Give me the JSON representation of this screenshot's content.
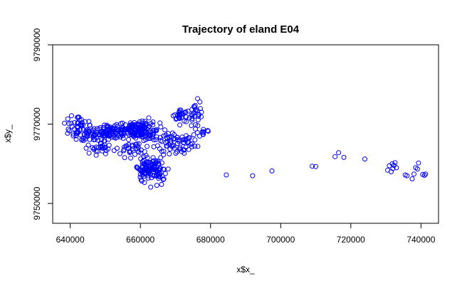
{
  "chart_data": {
    "type": "scatter",
    "title": "Trajectory of eland E04",
    "xlabel": "x$x_",
    "ylabel": "x$y_",
    "xlim": [
      635000,
      745000
    ],
    "ylim": [
      9745000,
      9790000
    ],
    "x_ticks": [
      640000,
      660000,
      680000,
      700000,
      720000,
      740000
    ],
    "y_ticks": [
      9750000,
      9770000,
      9790000
    ],
    "x_tick_labels": [
      "640000",
      "660000",
      "680000",
      "700000",
      "720000",
      "740000"
    ],
    "y_tick_labels": [
      "9750000",
      "9770000",
      "9790000"
    ],
    "marker": "open-circle",
    "point_color": "#0000ff",
    "grid": false,
    "legend": "none",
    "clusters": [
      {
        "cx": 642000,
        "cy": 9769500,
        "sx": 1800,
        "sy": 1600,
        "n": 40
      },
      {
        "cx": 646000,
        "cy": 9767500,
        "sx": 2200,
        "sy": 1200,
        "n": 45
      },
      {
        "cx": 652000,
        "cy": 9768200,
        "sx": 2500,
        "sy": 900,
        "n": 70
      },
      {
        "cx": 649000,
        "cy": 9764000,
        "sx": 2000,
        "sy": 1300,
        "n": 30
      },
      {
        "cx": 658000,
        "cy": 9768800,
        "sx": 2500,
        "sy": 1000,
        "n": 70
      },
      {
        "cx": 661000,
        "cy": 9768500,
        "sx": 2000,
        "sy": 1500,
        "n": 80
      },
      {
        "cx": 657000,
        "cy": 9763500,
        "sx": 2500,
        "sy": 1000,
        "n": 30
      },
      {
        "cx": 663000,
        "cy": 9758500,
        "sx": 2100,
        "sy": 1500,
        "n": 120
      },
      {
        "cx": 667500,
        "cy": 9765000,
        "sx": 2000,
        "sy": 1500,
        "n": 40
      },
      {
        "cx": 672500,
        "cy": 9765000,
        "sx": 2200,
        "sy": 1200,
        "n": 35
      },
      {
        "cx": 671500,
        "cy": 9772000,
        "sx": 1500,
        "sy": 1100,
        "n": 30
      },
      {
        "cx": 675500,
        "cy": 9773000,
        "sx": 1000,
        "sy": 1500,
        "n": 25
      },
      {
        "cx": 677500,
        "cy": 9768000,
        "sx": 1100,
        "sy": 700,
        "n": 12
      }
    ],
    "points": [
      {
        "x": 684500,
        "y": 9757200
      },
      {
        "x": 692000,
        "y": 9757000
      },
      {
        "x": 697500,
        "y": 9758200
      },
      {
        "x": 709000,
        "y": 9759400
      },
      {
        "x": 710000,
        "y": 9759300
      },
      {
        "x": 715500,
        "y": 9761800
      },
      {
        "x": 716500,
        "y": 9762800
      },
      {
        "x": 718000,
        "y": 9761600
      },
      {
        "x": 724000,
        "y": 9761200
      },
      {
        "x": 730500,
        "y": 9758400
      },
      {
        "x": 731000,
        "y": 9759500
      },
      {
        "x": 731500,
        "y": 9758000
      },
      {
        "x": 731800,
        "y": 9760000
      },
      {
        "x": 732000,
        "y": 9758800
      },
      {
        "x": 732300,
        "y": 9759600
      },
      {
        "x": 732600,
        "y": 9760300
      },
      {
        "x": 733000,
        "y": 9759000
      },
      {
        "x": 735500,
        "y": 9757200
      },
      {
        "x": 736000,
        "y": 9757000
      },
      {
        "x": 737500,
        "y": 9756200
      },
      {
        "x": 738000,
        "y": 9757400
      },
      {
        "x": 738500,
        "y": 9759000
      },
      {
        "x": 739000,
        "y": 9758700
      },
      {
        "x": 739300,
        "y": 9760200
      },
      {
        "x": 740500,
        "y": 9757300
      },
      {
        "x": 741000,
        "y": 9757100
      },
      {
        "x": 741300,
        "y": 9757400
      }
    ]
  }
}
